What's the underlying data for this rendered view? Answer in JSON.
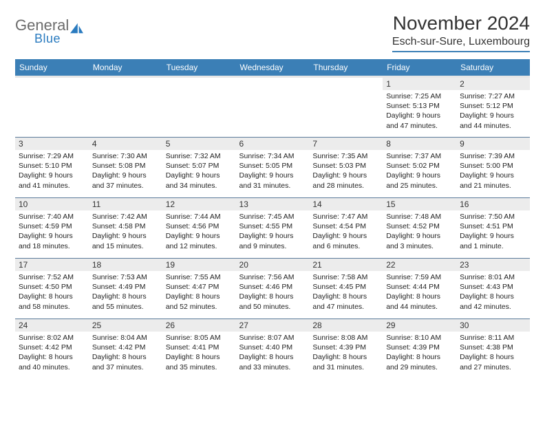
{
  "brand": {
    "word1": "General",
    "word2": "Blue",
    "color_blue": "#2a7bbf",
    "color_gray": "#6b6b6b"
  },
  "title": "November 2024",
  "location": "Esch-sur-Sure, Luxembourg",
  "header_bg": "#3b7fb6",
  "daynum_bg": "#ececec",
  "border_color": "#5a7a99",
  "weekdays": [
    "Sunday",
    "Monday",
    "Tuesday",
    "Wednesday",
    "Thursday",
    "Friday",
    "Saturday"
  ],
  "weeks": [
    [
      {
        "n": "",
        "sr": "",
        "ss": "",
        "dl": ""
      },
      {
        "n": "",
        "sr": "",
        "ss": "",
        "dl": ""
      },
      {
        "n": "",
        "sr": "",
        "ss": "",
        "dl": ""
      },
      {
        "n": "",
        "sr": "",
        "ss": "",
        "dl": ""
      },
      {
        "n": "",
        "sr": "",
        "ss": "",
        "dl": ""
      },
      {
        "n": "1",
        "sr": "Sunrise: 7:25 AM",
        "ss": "Sunset: 5:13 PM",
        "dl": "Daylight: 9 hours and 47 minutes."
      },
      {
        "n": "2",
        "sr": "Sunrise: 7:27 AM",
        "ss": "Sunset: 5:12 PM",
        "dl": "Daylight: 9 hours and 44 minutes."
      }
    ],
    [
      {
        "n": "3",
        "sr": "Sunrise: 7:29 AM",
        "ss": "Sunset: 5:10 PM",
        "dl": "Daylight: 9 hours and 41 minutes."
      },
      {
        "n": "4",
        "sr": "Sunrise: 7:30 AM",
        "ss": "Sunset: 5:08 PM",
        "dl": "Daylight: 9 hours and 37 minutes."
      },
      {
        "n": "5",
        "sr": "Sunrise: 7:32 AM",
        "ss": "Sunset: 5:07 PM",
        "dl": "Daylight: 9 hours and 34 minutes."
      },
      {
        "n": "6",
        "sr": "Sunrise: 7:34 AM",
        "ss": "Sunset: 5:05 PM",
        "dl": "Daylight: 9 hours and 31 minutes."
      },
      {
        "n": "7",
        "sr": "Sunrise: 7:35 AM",
        "ss": "Sunset: 5:03 PM",
        "dl": "Daylight: 9 hours and 28 minutes."
      },
      {
        "n": "8",
        "sr": "Sunrise: 7:37 AM",
        "ss": "Sunset: 5:02 PM",
        "dl": "Daylight: 9 hours and 25 minutes."
      },
      {
        "n": "9",
        "sr": "Sunrise: 7:39 AM",
        "ss": "Sunset: 5:00 PM",
        "dl": "Daylight: 9 hours and 21 minutes."
      }
    ],
    [
      {
        "n": "10",
        "sr": "Sunrise: 7:40 AM",
        "ss": "Sunset: 4:59 PM",
        "dl": "Daylight: 9 hours and 18 minutes."
      },
      {
        "n": "11",
        "sr": "Sunrise: 7:42 AM",
        "ss": "Sunset: 4:58 PM",
        "dl": "Daylight: 9 hours and 15 minutes."
      },
      {
        "n": "12",
        "sr": "Sunrise: 7:44 AM",
        "ss": "Sunset: 4:56 PM",
        "dl": "Daylight: 9 hours and 12 minutes."
      },
      {
        "n": "13",
        "sr": "Sunrise: 7:45 AM",
        "ss": "Sunset: 4:55 PM",
        "dl": "Daylight: 9 hours and 9 minutes."
      },
      {
        "n": "14",
        "sr": "Sunrise: 7:47 AM",
        "ss": "Sunset: 4:54 PM",
        "dl": "Daylight: 9 hours and 6 minutes."
      },
      {
        "n": "15",
        "sr": "Sunrise: 7:48 AM",
        "ss": "Sunset: 4:52 PM",
        "dl": "Daylight: 9 hours and 3 minutes."
      },
      {
        "n": "16",
        "sr": "Sunrise: 7:50 AM",
        "ss": "Sunset: 4:51 PM",
        "dl": "Daylight: 9 hours and 1 minute."
      }
    ],
    [
      {
        "n": "17",
        "sr": "Sunrise: 7:52 AM",
        "ss": "Sunset: 4:50 PM",
        "dl": "Daylight: 8 hours and 58 minutes."
      },
      {
        "n": "18",
        "sr": "Sunrise: 7:53 AM",
        "ss": "Sunset: 4:49 PM",
        "dl": "Daylight: 8 hours and 55 minutes."
      },
      {
        "n": "19",
        "sr": "Sunrise: 7:55 AM",
        "ss": "Sunset: 4:47 PM",
        "dl": "Daylight: 8 hours and 52 minutes."
      },
      {
        "n": "20",
        "sr": "Sunrise: 7:56 AM",
        "ss": "Sunset: 4:46 PM",
        "dl": "Daylight: 8 hours and 50 minutes."
      },
      {
        "n": "21",
        "sr": "Sunrise: 7:58 AM",
        "ss": "Sunset: 4:45 PM",
        "dl": "Daylight: 8 hours and 47 minutes."
      },
      {
        "n": "22",
        "sr": "Sunrise: 7:59 AM",
        "ss": "Sunset: 4:44 PM",
        "dl": "Daylight: 8 hours and 44 minutes."
      },
      {
        "n": "23",
        "sr": "Sunrise: 8:01 AM",
        "ss": "Sunset: 4:43 PM",
        "dl": "Daylight: 8 hours and 42 minutes."
      }
    ],
    [
      {
        "n": "24",
        "sr": "Sunrise: 8:02 AM",
        "ss": "Sunset: 4:42 PM",
        "dl": "Daylight: 8 hours and 40 minutes."
      },
      {
        "n": "25",
        "sr": "Sunrise: 8:04 AM",
        "ss": "Sunset: 4:42 PM",
        "dl": "Daylight: 8 hours and 37 minutes."
      },
      {
        "n": "26",
        "sr": "Sunrise: 8:05 AM",
        "ss": "Sunset: 4:41 PM",
        "dl": "Daylight: 8 hours and 35 minutes."
      },
      {
        "n": "27",
        "sr": "Sunrise: 8:07 AM",
        "ss": "Sunset: 4:40 PM",
        "dl": "Daylight: 8 hours and 33 minutes."
      },
      {
        "n": "28",
        "sr": "Sunrise: 8:08 AM",
        "ss": "Sunset: 4:39 PM",
        "dl": "Daylight: 8 hours and 31 minutes."
      },
      {
        "n": "29",
        "sr": "Sunrise: 8:10 AM",
        "ss": "Sunset: 4:39 PM",
        "dl": "Daylight: 8 hours and 29 minutes."
      },
      {
        "n": "30",
        "sr": "Sunrise: 8:11 AM",
        "ss": "Sunset: 4:38 PM",
        "dl": "Daylight: 8 hours and 27 minutes."
      }
    ]
  ]
}
